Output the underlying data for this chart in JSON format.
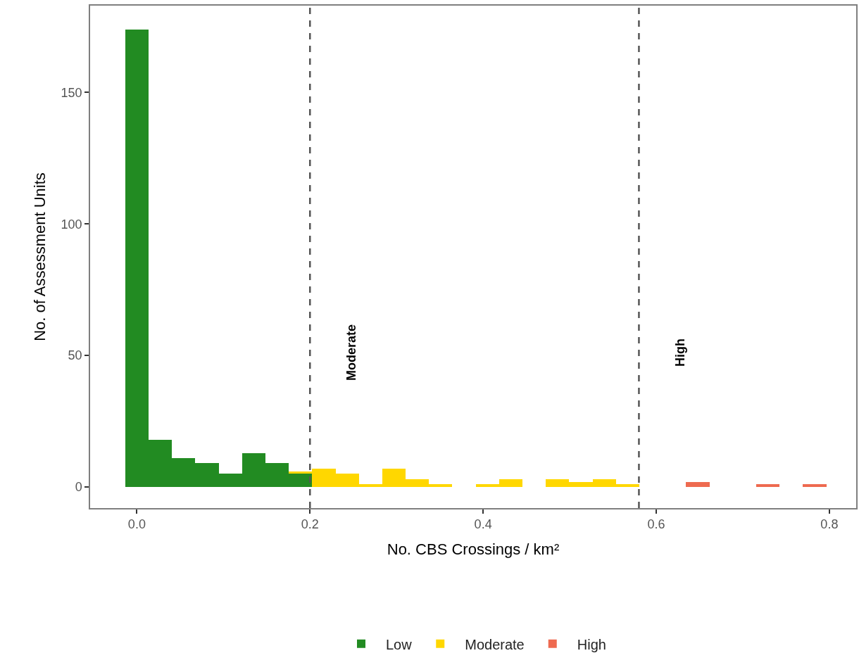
{
  "chart_data": {
    "type": "bar",
    "xlabel": "No. CBS Crossings / km²",
    "ylabel": "No. of Assessment Units",
    "x": [
      0,
      0.027,
      0.054,
      0.081,
      0.108,
      0.135,
      0.162,
      0.189,
      0.216,
      0.243,
      0.27,
      0.297,
      0.324,
      0.351,
      0.378,
      0.405,
      0.432,
      0.459,
      0.486,
      0.513,
      0.54,
      0.567,
      0.594,
      0.621,
      0.648,
      0.675,
      0.702,
      0.729,
      0.756,
      0.783
    ],
    "stacked": true,
    "series": [
      {
        "name": "Low",
        "color": "#228b22",
        "values": [
          174,
          18,
          11,
          9,
          5,
          13,
          9,
          5,
          0,
          0,
          0,
          0,
          0,
          0,
          0,
          0,
          0,
          0,
          0,
          0,
          0,
          0,
          0,
          0,
          0,
          0,
          0,
          0,
          0,
          0
        ]
      },
      {
        "name": "Moderate",
        "color": "#ffd700",
        "values": [
          0,
          0,
          0,
          0,
          0,
          0,
          0,
          1,
          7,
          5,
          1,
          7,
          3,
          1,
          0,
          1,
          3,
          0,
          3,
          2,
          3,
          1,
          0,
          0,
          0,
          0,
          0,
          0,
          0,
          0
        ]
      },
      {
        "name": "High",
        "color": "#ee6a50",
        "values": [
          0,
          0,
          0,
          0,
          0,
          0,
          0,
          0,
          0,
          0,
          0,
          0,
          0,
          0,
          0,
          0,
          0,
          0,
          0,
          0,
          0,
          0,
          0,
          0,
          2,
          0,
          0,
          1,
          0,
          1
        ]
      }
    ],
    "xlim": [
      -0.054,
      0.831
    ],
    "xticks": [
      {
        "value": 0,
        "label": "0.0"
      },
      0.2,
      0.4,
      0.6,
      0.8
    ],
    "ylim": [
      -8,
      183
    ],
    "yticks": [
      0,
      50,
      100,
      150
    ],
    "ref_lines": [
      {
        "axis": "x",
        "value": 0.2,
        "label": "Moderate",
        "line_style": "dashed",
        "color": "#555555"
      },
      {
        "axis": "x",
        "value": 0.58,
        "label": "High",
        "line_style": "dashed",
        "color": "#555555"
      }
    ],
    "grid": false,
    "legend": "bottom"
  }
}
